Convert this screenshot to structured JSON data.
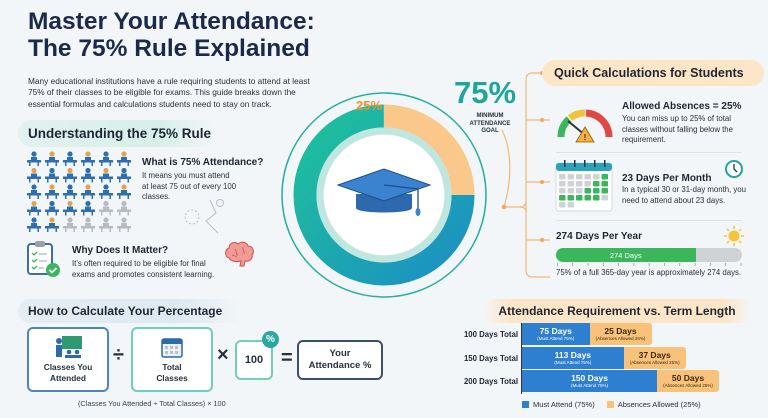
{
  "title_lines": [
    "Master Your Attendance:",
    "The 75% Rule Explained"
  ],
  "intro": "Many educational institutions have a rule requiring students to attend at least 75% of their classes to be eligible for exams. This guide breaks down the essential formulas and calculations students need to stay on track.",
  "understanding": {
    "heading": "Understanding the 75% Rule",
    "what_title": "What is 75% Attendance?",
    "what_text": "It means you must attend at least 75 out of every 100 classes.",
    "why_title": "Why Does It Matter?",
    "why_text": "It's often required to be eligible for final exams and promotes consistent learning."
  },
  "goal": {
    "percent": "75%",
    "label_lines": [
      "MINIMUM",
      "ATTENDANCE",
      "GOAL"
    ],
    "absence_percent": "25%",
    "attend_fraction": 0.75
  },
  "quick": {
    "heading": "Quick Calculations for Students",
    "absences_title": "Allowed Absences = 25%",
    "absences_text": "You can miss up to 25% of total classes without falling below the requirement.",
    "month_title": "23 Days Per Month",
    "month_text": "In a typical 30 or 31-day month, you need to attend about 23 days.",
    "year_title": "274 Days Per Year",
    "year_bar_label": "274 Days",
    "year_bar_fraction": 0.75,
    "year_text": "75% of a full 365-day year is approximately 274 days."
  },
  "calc": {
    "heading": "How to Calculate Your Percentage",
    "attended": "Classes You Attended",
    "divide": "÷",
    "total": "Total Classes",
    "times": "×",
    "hundred": "100",
    "percent_badge": "%",
    "equals": "=",
    "result": "Your Attendance %",
    "formula": "(Classes You Attended ÷ Total Classes) × 100"
  },
  "colors": {
    "must": "#2f7fd0",
    "absence": "#f8c27a",
    "teal": "#1fa69a",
    "green": "#3cb65c",
    "navy": "#1b2a4a"
  },
  "chart_data": {
    "type": "bar",
    "stacked": true,
    "orientation": "horizontal",
    "title": "Attendance Requirement vs. Term Length",
    "categories": [
      "100 Days Total",
      "150 Days Total",
      "200 Days Total"
    ],
    "series": [
      {
        "name": "Must Attend (75%)",
        "values": [
          75,
          113,
          150
        ],
        "labels": [
          "75 Days",
          "113 Days",
          "150 Days"
        ],
        "sublabel": "(Must Attend 75%)",
        "color": "#2f7fd0"
      },
      {
        "name": "Absences Allowed (25%)",
        "values": [
          25,
          37,
          50
        ],
        "labels": [
          "25 Days",
          "37 Days",
          "50 Days"
        ],
        "sublabel": "(Absences Allowed 25%)",
        "color": "#f8c27a"
      }
    ],
    "legend": "bottom"
  }
}
